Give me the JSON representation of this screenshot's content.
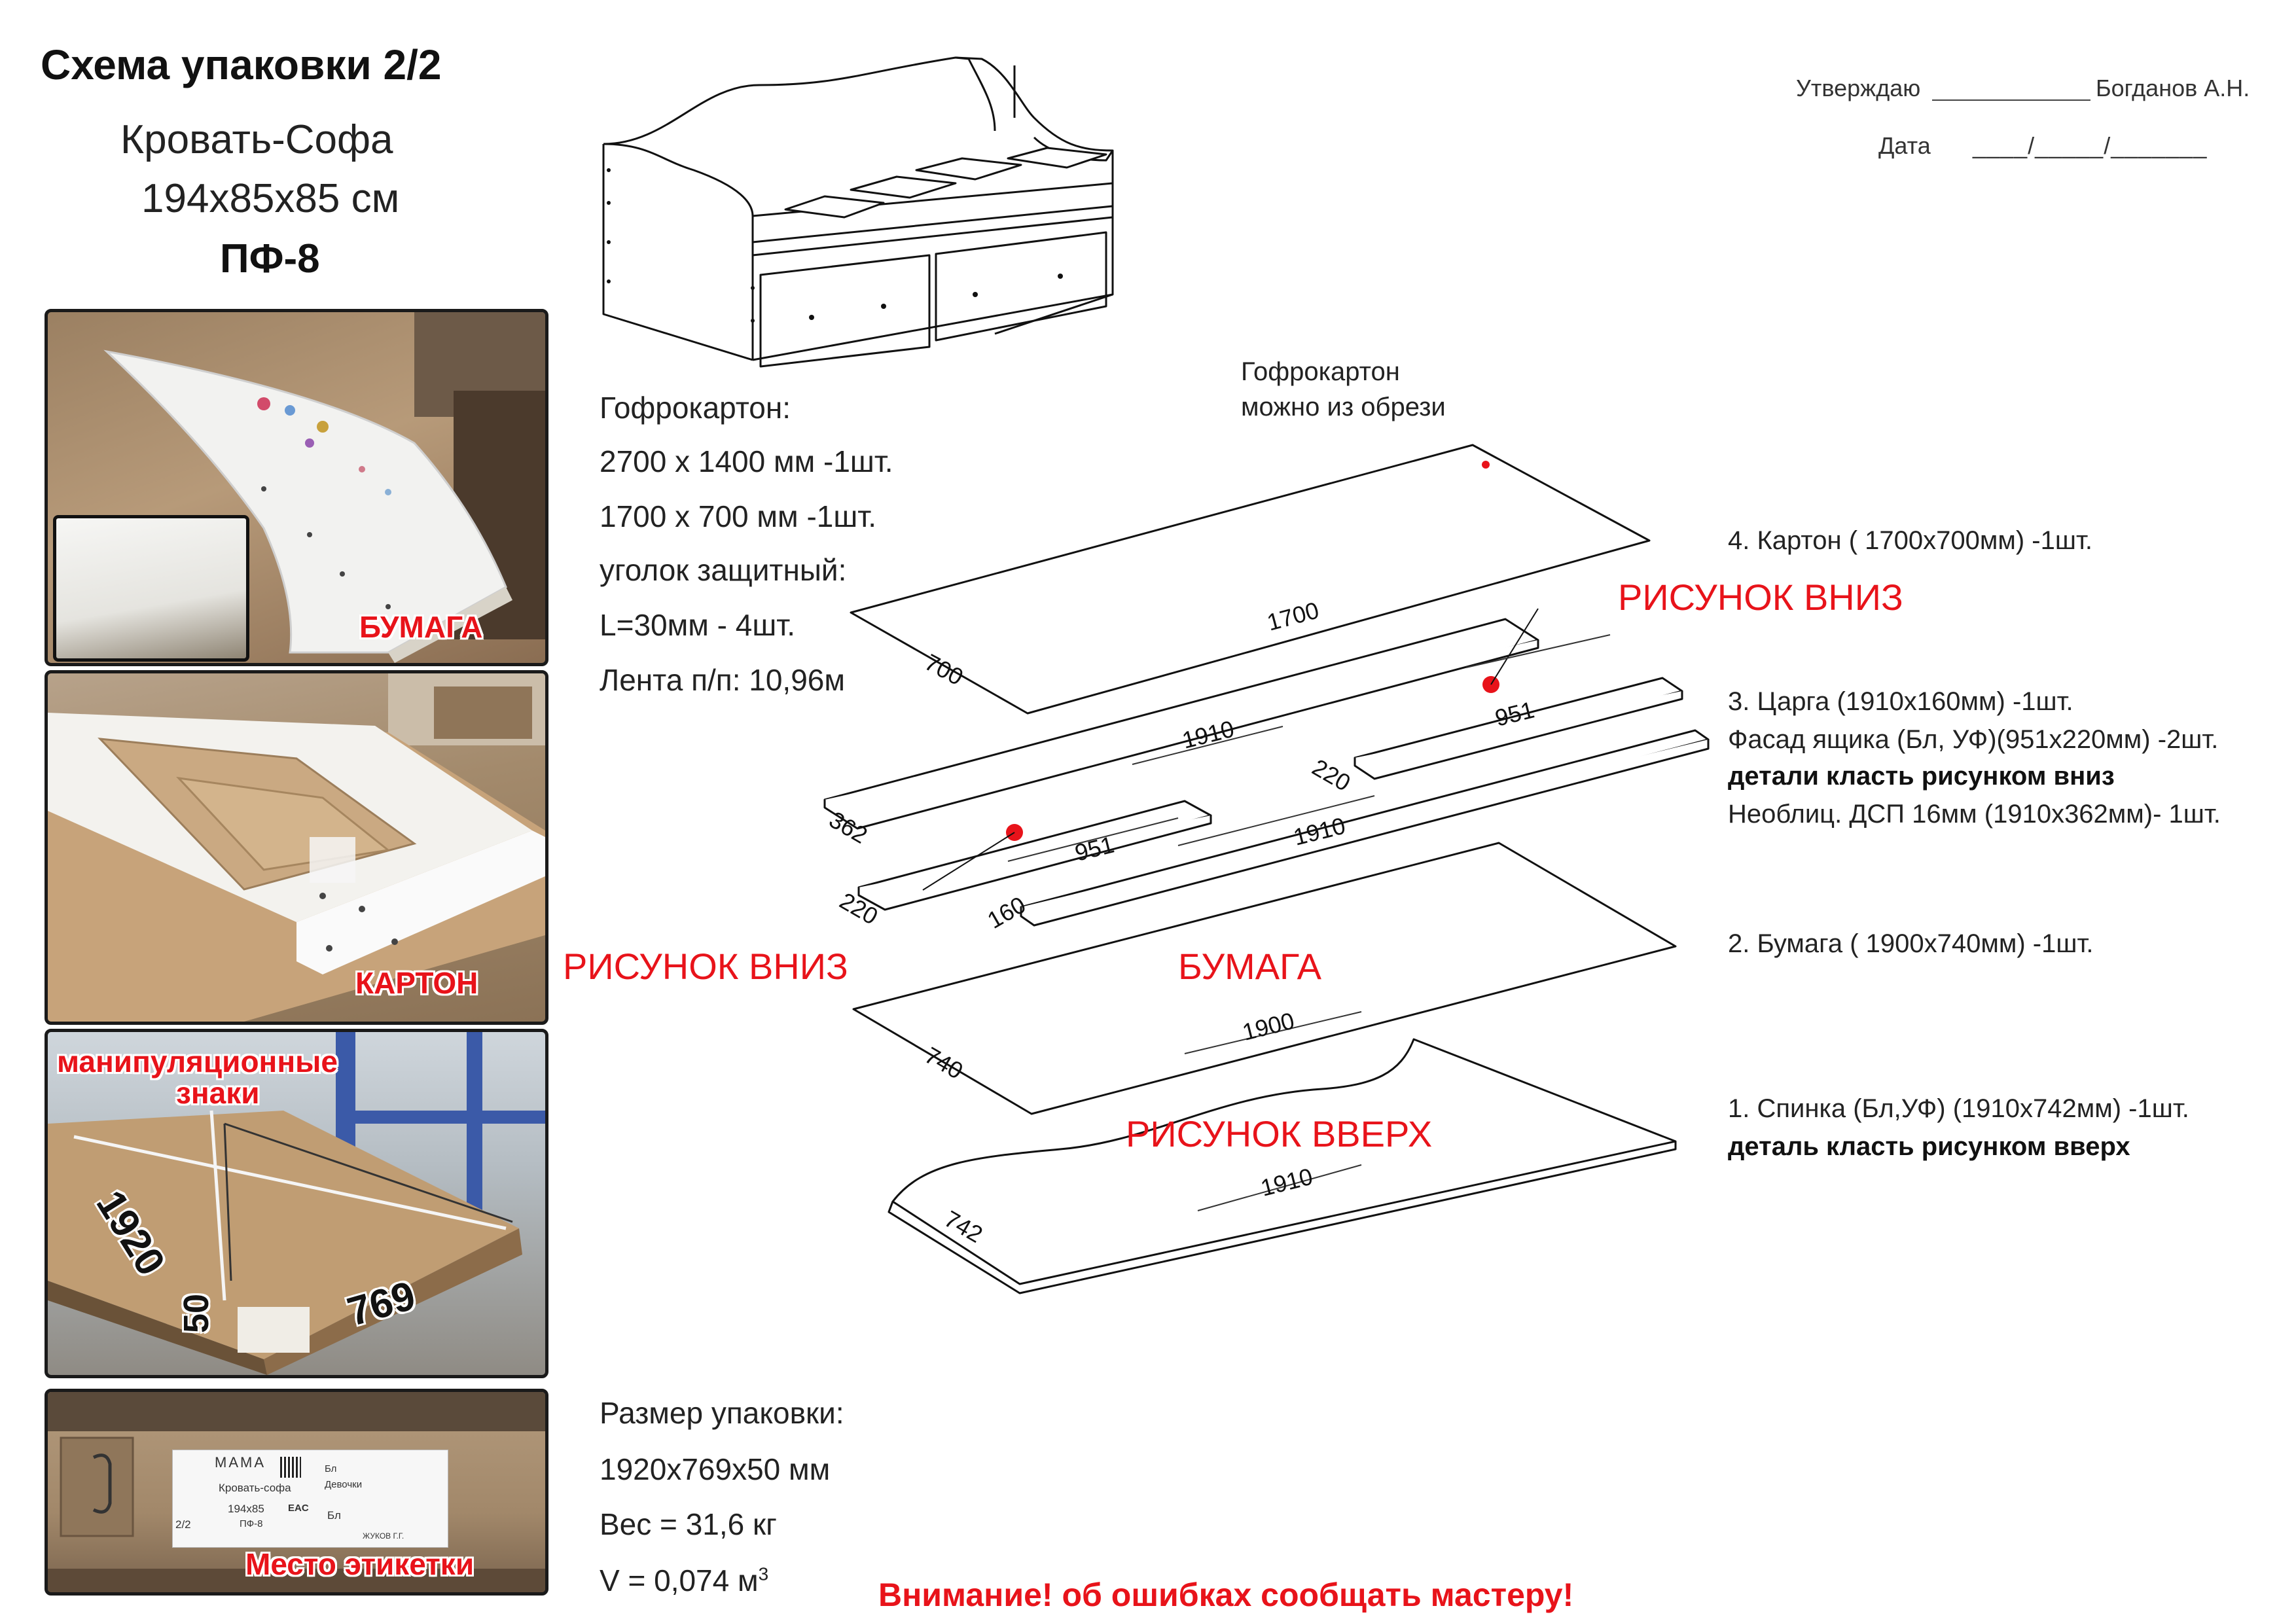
{
  "header": {
    "title": "Схема упаковки 2/2",
    "product": "Кровать-Софа",
    "size": "194x85x85 см",
    "code": "ПФ-8"
  },
  "approval": {
    "approve_label": "Утверждаю",
    "approver": "Богданов А.Н.",
    "date_label": "Дата",
    "date_value": "____/_____/_______"
  },
  "photos": [
    {
      "label": "БУМАГА"
    },
    {
      "label": "КАРТОН"
    },
    {
      "label": "манипуляционные знаки",
      "label_line1": "манипуляционные",
      "label_line2": "знаки",
      "dims": {
        "length": "1920",
        "height": "50",
        "width": "769"
      }
    },
    {
      "label": "Место этикетки",
      "sticker": {
        "brand": "МАМА",
        "name": "Кровать-софа",
        "size": "194x85",
        "code": "ПФ-8",
        "count": "2/2",
        "color": "Бл",
        "variant": "Девочки",
        "eac": "EAC",
        "color2": "Бл",
        "packer": "ЖУКОВ Г.Г."
      }
    }
  ],
  "materials": {
    "lines": [
      "Гофрокартон:",
      "2700 x 1400 мм -1шт.",
      "1700 x 700 мм -1шт.",
      "уголок защитный:",
      "L=30мм - 4шт.",
      "Лента п/п: 10,96м"
    ]
  },
  "diagram": {
    "note_line1": "Гофрокартон",
    "note_line2": "можно из обрези",
    "labels": {
      "picture_down": "РИСУНОК ВНИЗ",
      "picture_up": "РИСУНОК ВВЕРХ",
      "paper": "БУМАГА"
    },
    "dims": {
      "card_len": "1700",
      "card_w": "700",
      "chipboard_len": "1910",
      "chipboard_w": "362",
      "facade_len": "951",
      "facade_w": "220",
      "tsarga_len": "1910",
      "tsarga_w": "160",
      "paper_len": "1900",
      "paper_w": "740",
      "back_len": "1910",
      "back_w": "742"
    }
  },
  "layers": {
    "l4": "4. Картон ( 1700х700мм) -1шт.",
    "l3a": "3. Царга (1910х160мм) -1шт.",
    "l3b": "Фасад ящика (Бл, УФ)(951х220мм) -2шт.",
    "l3c": "детали класть  рисунком вниз",
    "l3d": "Необлиц. ДСП 16мм  (1910х362мм)- 1шт.",
    "l2": "2. Бумага ( 1900х740мм) -1шт.",
    "l1a": "1. Спинка (Бл,УФ) (1910х742мм) -1шт.",
    "l1b": "деталь класть  рисунком вверх"
  },
  "package": {
    "lines": [
      "Размер упаковки:",
      "1920х769х50 мм",
      "Вес = 31,6 кг"
    ],
    "volume": "V = 0,074 м",
    "volume_unit_sup": "3"
  },
  "warning": "Внимание! об ошибках сообщать мастеру!",
  "colors": {
    "accent_red": "#e8131a",
    "cardboard": "#c9ad86",
    "line": "#111111"
  }
}
